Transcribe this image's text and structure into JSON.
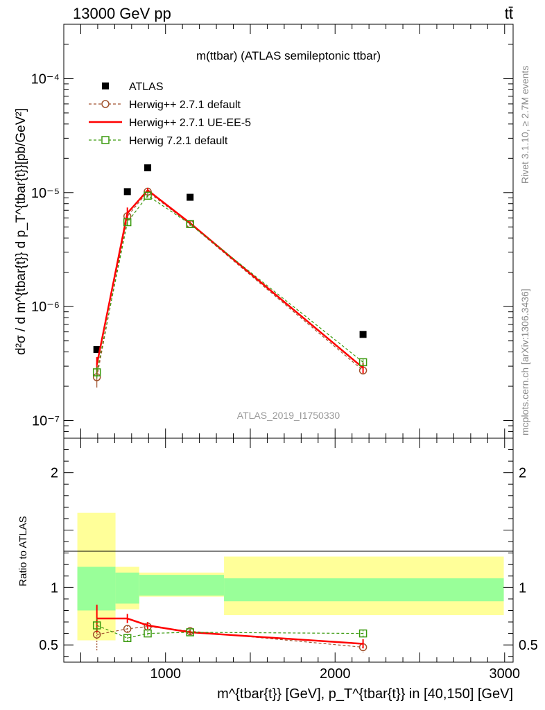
{
  "header": {
    "left": "13000 GeV pp",
    "right": "tt̄"
  },
  "side_labels": {
    "rivet": "Rivet 3.1.10, ≥ 2.7M events",
    "source": "mcplots.cern.ch [arXiv:1306.3436]"
  },
  "chart_data": [
    {
      "type": "line",
      "title": "m(ttbar) (ATLAS semileptonic ttbar)",
      "ylabel": "d²σ / d m^{tbar{t}} d p_T^{tbar{t}}[pb/GeV²]",
      "yscale": "log",
      "ylim": [
        7e-08,
        0.0003
      ],
      "xlim": [
        400,
        3050
      ],
      "watermark": "ATLAS_2019_I1750330",
      "y_ticks": [
        {
          "value": 1e-07,
          "label": "10⁻⁷"
        },
        {
          "value": 1e-06,
          "label": "10⁻⁶"
        },
        {
          "value": 1e-05,
          "label": "10⁻⁵"
        },
        {
          "value": 0.0001,
          "label": "10⁻⁴"
        }
      ],
      "x": [
        595,
        775,
        895,
        1145,
        2165
      ],
      "legend_position": "top-left",
      "series": [
        {
          "name": "ATLAS",
          "style": "data",
          "color": "#000000",
          "values": [
            4.2e-07,
            1.02e-05,
            1.65e-05,
            9.1e-06,
            5.7e-07
          ]
        },
        {
          "name": "Herwig++ 2.7.1 default",
          "style": "dashed-circle",
          "color": "#a0522d",
          "values": [
            2.4e-07,
            6.2e-06,
            1.02e-05,
            5.3e-06,
            2.75e-07
          ],
          "err": [
            4.5e-08,
            6e-07,
            5e-07,
            2e-07,
            2e-08
          ]
        },
        {
          "name": "Herwig++ 2.7.1 UE-EE-5",
          "style": "solid",
          "color": "#ff0000",
          "values": [
            3.1e-07,
            6.6e-06,
            1.05e-05,
            5.4e-06,
            2.9e-07
          ],
          "err": [
            5e-08,
            8e-07,
            5e-07,
            2e-07,
            3e-08
          ]
        },
        {
          "name": "Herwig 7.2.1 default",
          "style": "dashed-square",
          "color": "#3a9a0e",
          "values": [
            2.65e-07,
            5.5e-06,
            9.4e-06,
            5.3e-06,
            3.25e-07
          ],
          "err": [
            3e-08,
            4e-07,
            4e-07,
            2e-07,
            2e-08
          ]
        }
      ]
    },
    {
      "type": "line",
      "ylabel": "Ratio to ATLAS",
      "xlabel": "m^{tbar{t}} [GeV], p_T^{tbar{t}} in [40,150] [GeV]",
      "ylim": [
        0.35,
        2.3
      ],
      "xlim": [
        400,
        3050
      ],
      "y_ticks": [
        {
          "value": 0.5,
          "label": "0.5"
        },
        {
          "value": 1,
          "label": "1"
        },
        {
          "value": 2,
          "label": "2"
        }
      ],
      "x_ticks": [
        {
          "value": 1000,
          "label": "1000"
        },
        {
          "value": 2000,
          "label": "2000"
        },
        {
          "value": 3000,
          "label": "3000"
        }
      ],
      "bands": [
        {
          "x0": 480,
          "x1": 705,
          "inner": [
            0.8,
            1.18
          ],
          "outer": [
            0.54,
            1.65
          ]
        },
        {
          "x0": 705,
          "x1": 845,
          "inner": [
            0.86,
            1.13
          ],
          "outer": [
            0.81,
            1.18
          ]
        },
        {
          "x0": 845,
          "x1": 1345,
          "inner": [
            0.93,
            1.11
          ],
          "outer": [
            0.92,
            1.13
          ]
        },
        {
          "x0": 1345,
          "x1": 2995,
          "inner": [
            0.88,
            1.08
          ],
          "outer": [
            0.76,
            1.27
          ]
        }
      ],
      "series": [
        {
          "name": "Herwig++ 2.7.1 default",
          "color": "#a0522d",
          "x": [
            595,
            775,
            895,
            1145,
            2165
          ],
          "values": [
            0.59,
            0.64,
            0.66,
            0.62,
            0.48
          ],
          "err": [
            0.14,
            0.03,
            0.03,
            0.02,
            0.05
          ]
        },
        {
          "name": "Herwig++ 2.7.1 UE-EE-5",
          "color": "#ff0000",
          "x": [
            480,
            705,
            845,
            1345,
            2995
          ],
          "values": [
            0.73,
            0.73,
            0.67,
            0.61,
            0.51
          ],
          "err": [
            0.12,
            0.04,
            0.03,
            0.02,
            0.04
          ]
        },
        {
          "name": "Herwig 7.2.1 default",
          "color": "#3a9a0e",
          "x": [
            595,
            775,
            895,
            1145,
            2165
          ],
          "values": [
            0.67,
            0.56,
            0.6,
            0.61,
            0.6
          ],
          "err": [
            0.06,
            0.03,
            0.02,
            0.02,
            0.03
          ]
        }
      ],
      "band_colors": {
        "inner": "#99ff99",
        "outer": "#ffff99"
      }
    }
  ]
}
